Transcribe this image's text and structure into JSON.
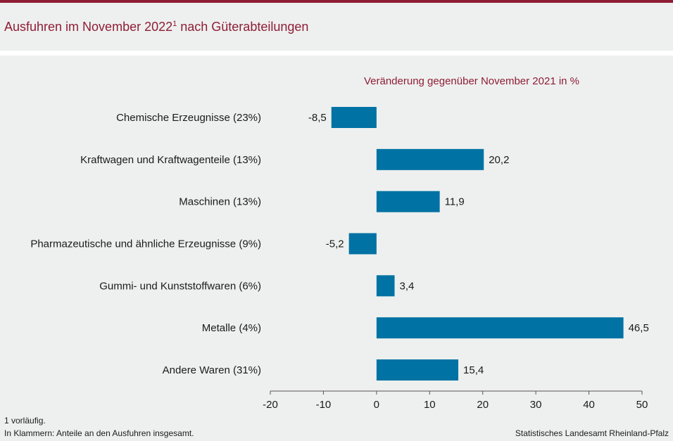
{
  "title": {
    "text": "Ausfuhren im November 2022",
    "superscript": "1",
    "suffix": " nach Güterabteilungen"
  },
  "colors": {
    "accent": "#8f1d36",
    "bar": "#0072a3",
    "background": "#eef0ef"
  },
  "chart_data": {
    "type": "bar",
    "orientation": "horizontal",
    "title": "Ausfuhren im November 2022 nach Güterabteilungen",
    "subtitle": "Veränderung gegenüber November 2021 in %",
    "categories": [
      "Chemische Erzeugnisse (23%)",
      "Kraftwagen und Kraftwagenteile (13%)",
      "Maschinen (13%)",
      "Pharmazeutische und ähnliche Erzeugnisse (9%)",
      "Gummi- und Kunststoffwaren (6%)",
      "Metalle (4%)",
      "Andere Waren (31%)"
    ],
    "values": [
      -8.5,
      20.2,
      11.9,
      -5.2,
      3.4,
      46.5,
      15.4
    ],
    "value_labels": [
      "-8,5",
      "20,2",
      "11,9",
      "-5,2",
      "3,4",
      "46,5",
      "15,4"
    ],
    "xlim": [
      -20,
      50
    ],
    "xticks": [
      -20,
      -10,
      0,
      10,
      20,
      30,
      40,
      50
    ],
    "xtick_labels": [
      "-20",
      "-10",
      "0",
      "10",
      "20",
      "30",
      "40",
      "50"
    ],
    "xlabel": "",
    "ylabel": "",
    "grid": false,
    "legend": "none"
  },
  "footer": {
    "note1": "1 vorläufig.",
    "note2": "In Klammern: Anteile an den Ausfuhren insgesamt.",
    "source": "Statistisches Landesamt Rheinland-Pfalz"
  }
}
